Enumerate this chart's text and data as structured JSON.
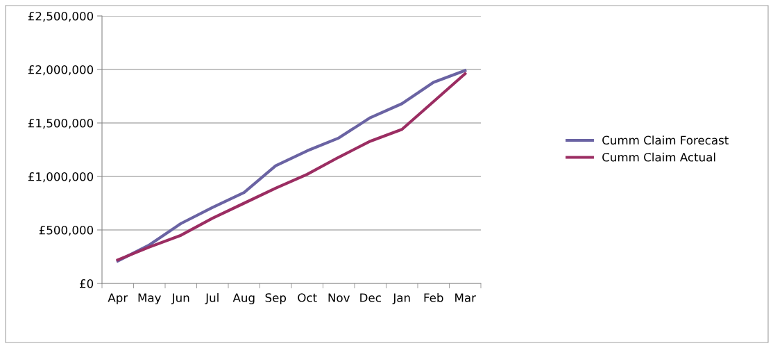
{
  "chart_data": {
    "type": "line",
    "categories": [
      "Apr",
      "May",
      "Jun",
      "Jul",
      "Aug",
      "Sep",
      "Oct",
      "Nov",
      "Dec",
      "Jan",
      "Feb",
      "Mar"
    ],
    "series": [
      {
        "name": "Cumm Claim Forecast",
        "color": "#6a63a3",
        "values": [
          210000,
          360000,
          560000,
          710000,
          850000,
          1100000,
          1240000,
          1360000,
          1550000,
          1680000,
          1880000,
          1990000
        ]
      },
      {
        "name": "Cumm Claim Actual",
        "color": "#9b2d62",
        "values": [
          220000,
          340000,
          450000,
          610000,
          750000,
          890000,
          1020000,
          1180000,
          1330000,
          1440000,
          1700000,
          1960000
        ]
      }
    ],
    "ylim": [
      0,
      2500000
    ],
    "yticks": [
      {
        "value": 0,
        "label": "£0"
      },
      {
        "value": 500000,
        "label": "£500,000"
      },
      {
        "value": 1000000,
        "label": "£1,000,000"
      },
      {
        "value": 1500000,
        "label": "£1,500,000"
      },
      {
        "value": 2000000,
        "label": "£2,000,000"
      },
      {
        "value": 2500000,
        "label": "£2,500,000"
      }
    ],
    "grid": "y",
    "legend": "right",
    "marker": "none",
    "line_style": "solid"
  }
}
